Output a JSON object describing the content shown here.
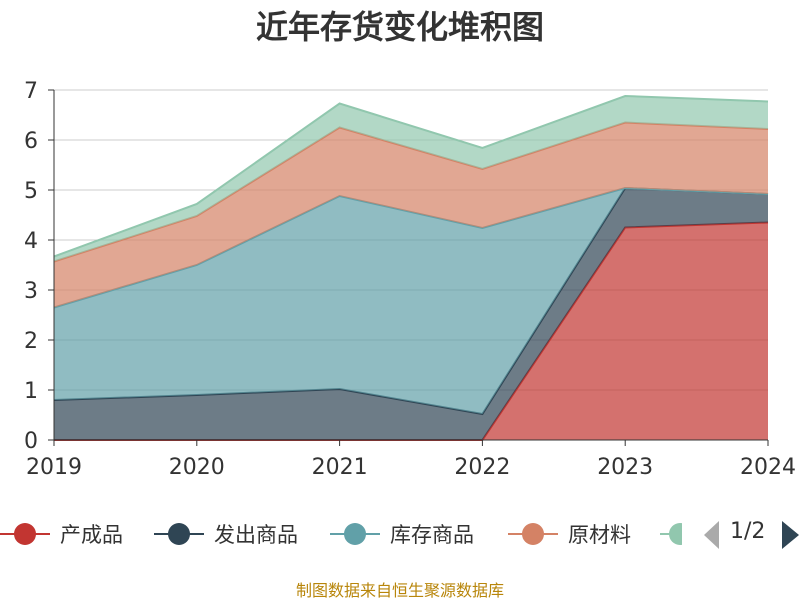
{
  "chart_data": {
    "type": "area",
    "stacked": true,
    "title": "近年存货变化堆积图",
    "x": [
      "2019",
      "2020",
      "2021",
      "2022",
      "2023",
      "2024"
    ],
    "ylim": [
      0,
      7
    ],
    "yticks": [
      "0",
      "1",
      "2",
      "3",
      "4",
      "5",
      "6",
      "7"
    ],
    "grid": true,
    "legend_position": "bottom",
    "series": [
      {
        "name": "产成品",
        "color": "#c23531",
        "values": [
          0,
          0,
          0,
          0,
          4.25,
          4.35
        ]
      },
      {
        "name": "发出商品",
        "color": "#2f4554",
        "values": [
          0.8,
          0.9,
          1.02,
          0.52,
          0.79,
          0.57
        ]
      },
      {
        "name": "库存商品",
        "color": "#61a0a8",
        "values": [
          1.85,
          2.6,
          3.86,
          3.72,
          0.0,
          0.0
        ]
      },
      {
        "name": "原材料",
        "color": "#d48265",
        "values": [
          0.92,
          0.98,
          1.37,
          1.18,
          1.31,
          1.3
        ]
      },
      {
        "name": "",
        "color": "#91c7ae",
        "values": [
          0.1,
          0.24,
          0.48,
          0.42,
          0.53,
          0.55
        ]
      }
    ]
  },
  "legend": {
    "page": "1/2"
  },
  "source": "制图数据来自恒生聚源数据库"
}
